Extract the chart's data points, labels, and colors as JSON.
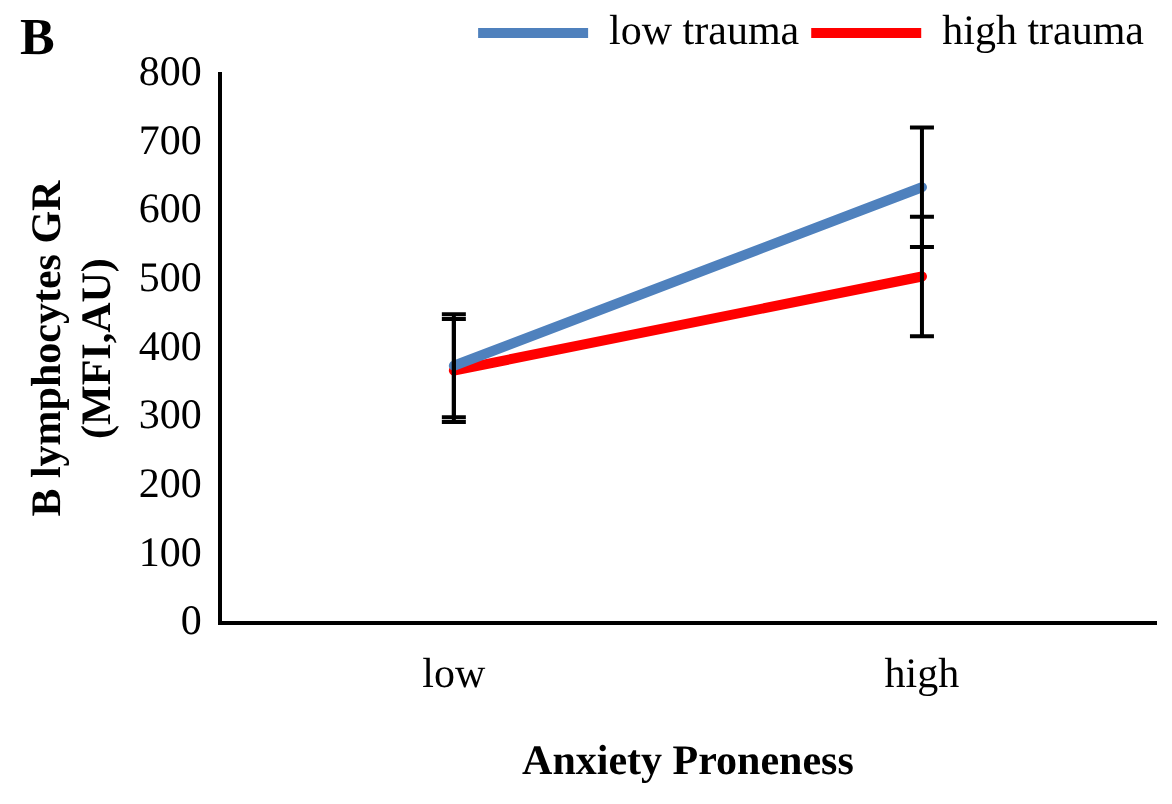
{
  "chart_data": {
    "type": "line",
    "xlabel": "Anxiety Proneness",
    "ylabel": "B lymphocytes GR\n(MFI,AU)",
    "annotations": [
      "B"
    ],
    "categories": [
      "low",
      "high"
    ],
    "series": [
      {
        "name": "low trauma",
        "color": "#4f81bd",
        "values": [
          375,
          635
        ],
        "errors": [
          75,
          87
        ]
      },
      {
        "name": "high trauma",
        "color": "#ff0000",
        "values": [
          368,
          505
        ],
        "errors": [
          75,
          87
        ]
      }
    ],
    "ylim": [
      0,
      800
    ],
    "yticks": [
      0,
      100,
      200,
      300,
      400,
      500,
      600,
      700,
      800
    ],
    "grid": false,
    "legend": "top",
    "marker": "none",
    "line_style": "solid"
  }
}
